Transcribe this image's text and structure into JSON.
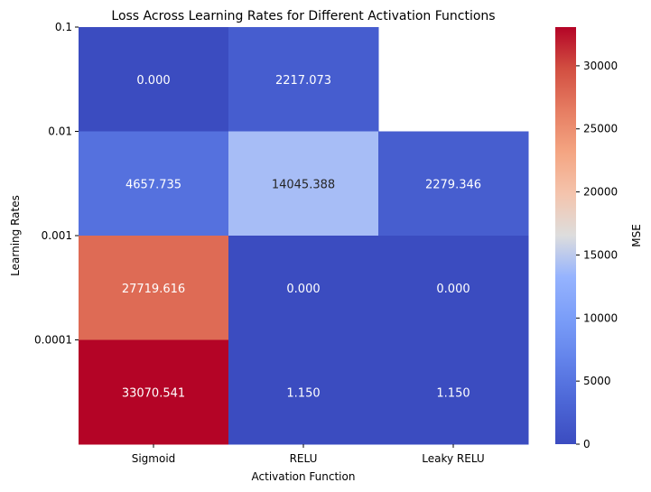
{
  "chart_data": {
    "type": "heatmap",
    "title": "Loss Across Learning Rates for Different Activation Functions",
    "xlabel": "Activation Function",
    "ylabel": "Learning Rates",
    "x_categories": [
      "Sigmoid",
      "RELU",
      "Leaky RELU"
    ],
    "y_categories": [
      "0.1",
      "0.01",
      "0.001",
      "0.0001"
    ],
    "values": [
      [
        0.0,
        2217.073,
        null
      ],
      [
        4657.735,
        14045.388,
        2279.346
      ],
      [
        27719.616,
        0.0,
        0.0
      ],
      [
        33070.541,
        1.15,
        1.15
      ]
    ],
    "value_labels": [
      [
        "0.000",
        "2217.073",
        ""
      ],
      [
        "4657.735",
        "14045.388",
        "2279.346"
      ],
      [
        "27719.616",
        "0.000",
        "0.000"
      ],
      [
        "33070.541",
        "1.150",
        "1.150"
      ]
    ],
    "colorbar": {
      "label": "MSE",
      "range": [
        0,
        33070.541
      ],
      "ticks": [
        0,
        5000,
        10000,
        15000,
        20000,
        25000,
        30000
      ],
      "tick_labels": [
        "0",
        "5000",
        "10000",
        "15000",
        "20000",
        "25000",
        "30000"
      ],
      "colormap": "coolwarm"
    },
    "grid": false
  }
}
